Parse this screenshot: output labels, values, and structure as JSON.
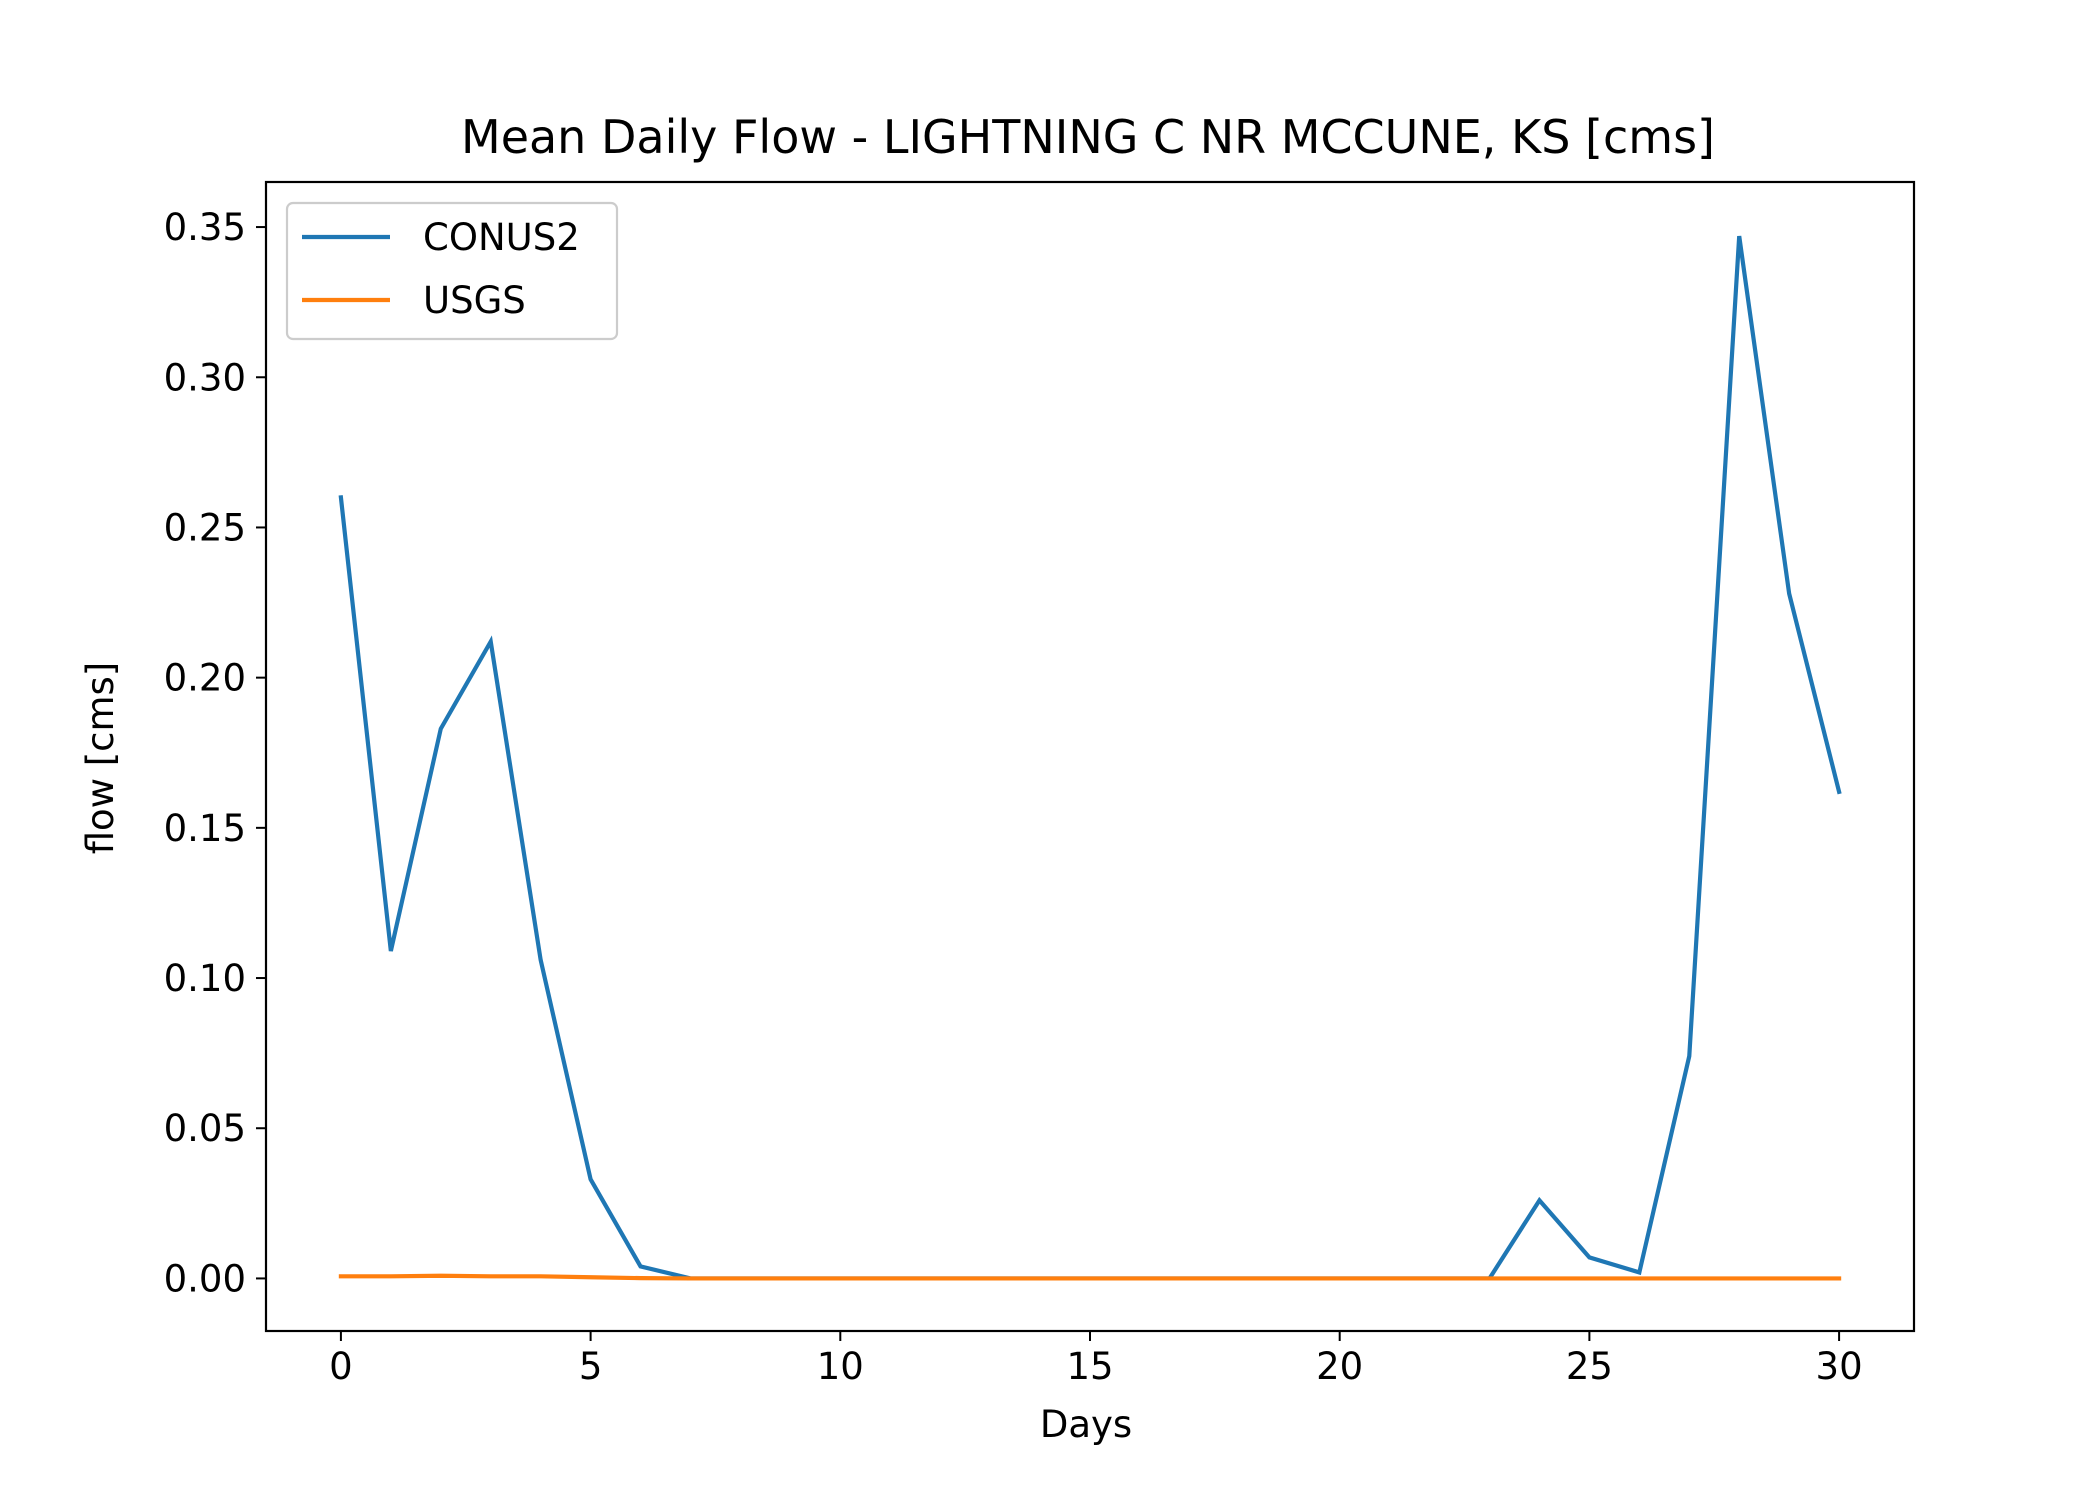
{
  "chart_data": {
    "type": "line",
    "title": "Mean Daily Flow - LIGHTNING C NR MCCUNE, KS [cms]",
    "xlabel": "Days",
    "ylabel": "flow [cms]",
    "xlim": [
      -1.5,
      31.5
    ],
    "ylim": [
      -0.0175,
      0.365
    ],
    "xticks": [
      0,
      5,
      10,
      15,
      20,
      25,
      30
    ],
    "xtick_labels": [
      "0",
      "5",
      "10",
      "15",
      "20",
      "25",
      "30"
    ],
    "yticks": [
      0.0,
      0.05,
      0.1,
      0.15,
      0.2,
      0.25,
      0.3,
      0.35
    ],
    "ytick_labels": [
      "0.00",
      "0.05",
      "0.10",
      "0.15",
      "0.20",
      "0.25",
      "0.30",
      "0.35"
    ],
    "grid": false,
    "legend_position": "upper-left",
    "x": [
      0,
      1,
      2,
      3,
      4,
      5,
      6,
      7,
      8,
      9,
      10,
      11,
      12,
      13,
      14,
      15,
      16,
      17,
      18,
      19,
      20,
      21,
      22,
      23,
      24,
      25,
      26,
      27,
      28,
      29,
      30
    ],
    "series": [
      {
        "name": "CONUS2",
        "color": "#1f77b4",
        "values": [
          0.26,
          0.109,
          0.183,
          0.212,
          0.106,
          0.033,
          0.004,
          0.0,
          0.0,
          0.0,
          0.0,
          0.0,
          0.0,
          0.0,
          0.0,
          0.0,
          0.0,
          0.0,
          0.0,
          0.0,
          0.0,
          0.0,
          0.0,
          0.0,
          0.026,
          0.007,
          0.002,
          0.074,
          0.347,
          0.228,
          0.162
        ]
      },
      {
        "name": "USGS",
        "color": "#ff7f0e",
        "values": [
          0.0007,
          0.0007,
          0.0009,
          0.0007,
          0.0007,
          0.0004,
          0.0001,
          0.0,
          0.0,
          0.0,
          0.0,
          0.0,
          0.0,
          0.0,
          0.0,
          0.0,
          0.0,
          0.0,
          0.0,
          0.0,
          0.0,
          0.0,
          0.0,
          0.0,
          0.0,
          0.0,
          0.0,
          0.0,
          0.0,
          0.0,
          0.0
        ]
      }
    ]
  }
}
